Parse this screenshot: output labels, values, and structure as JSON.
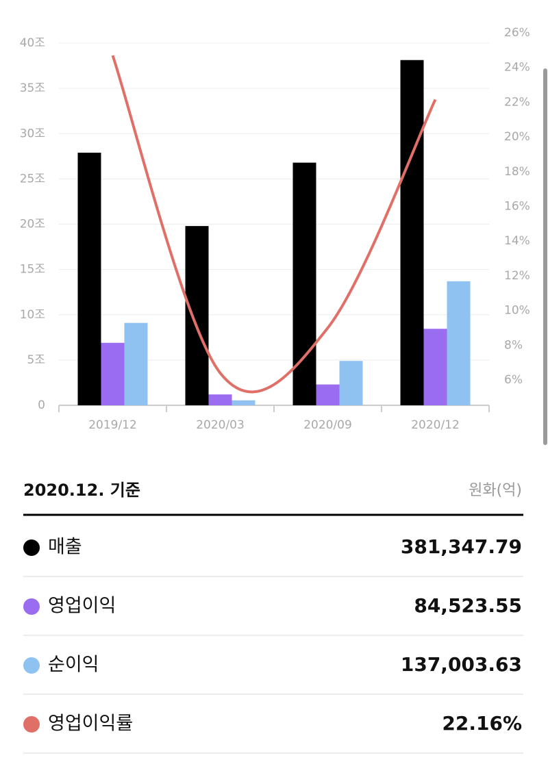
{
  "chart_data": {
    "type": "bar",
    "categories": [
      "2019/12",
      "2020/03",
      "2020/09",
      "2020/12"
    ],
    "series": [
      {
        "name": "매출",
        "color": "#000000",
        "values": [
          27.9,
          19.8,
          26.8,
          38.13
        ]
      },
      {
        "name": "영업이익",
        "color": "#9a6cf0",
        "values": [
          6.9,
          1.2,
          2.3,
          8.45
        ]
      },
      {
        "name": "순이익",
        "color": "#8fc1f1",
        "values": [
          9.1,
          0.55,
          4.9,
          13.7
        ]
      },
      {
        "name": "영업이익률",
        "color": "#e07067",
        "type": "line",
        "axis": "y2",
        "values": [
          24.7,
          6.4,
          9.0,
          22.16
        ]
      }
    ],
    "ylim": [
      0,
      40
    ],
    "yticks": [
      0,
      {
        "value": 5,
        "label": "5조"
      },
      {
        "value": 10,
        "label": "10조"
      },
      {
        "value": 15,
        "label": "15조"
      },
      {
        "value": 20,
        "label": "20조"
      },
      {
        "value": 25,
        "label": "25조"
      },
      {
        "value": 30,
        "label": "30조"
      },
      {
        "value": 35,
        "label": "35조"
      },
      {
        "value": 40,
        "label": "40조"
      }
    ],
    "y2lim": [
      4.54,
      26
    ],
    "y2ticks": [
      {
        "value": 6,
        "label": "6%"
      },
      {
        "value": 8,
        "label": "8%"
      },
      {
        "value": 10,
        "label": "10%"
      },
      {
        "value": 12,
        "label": "12%"
      },
      {
        "value": 14,
        "label": "14%"
      },
      {
        "value": 16,
        "label": "16%"
      },
      {
        "value": 18,
        "label": "18%"
      },
      {
        "value": 20,
        "label": "20%"
      },
      {
        "value": 22,
        "label": "22%"
      },
      {
        "value": 24,
        "label": "24%"
      },
      {
        "value": 26,
        "label": "26%"
      }
    ],
    "grid": true
  },
  "summary": {
    "title": "2020.12. 기준",
    "unit": "원화(억)",
    "values": [
      "381,347.79",
      "84,523.55",
      "137,003.63",
      "22.16%"
    ]
  }
}
